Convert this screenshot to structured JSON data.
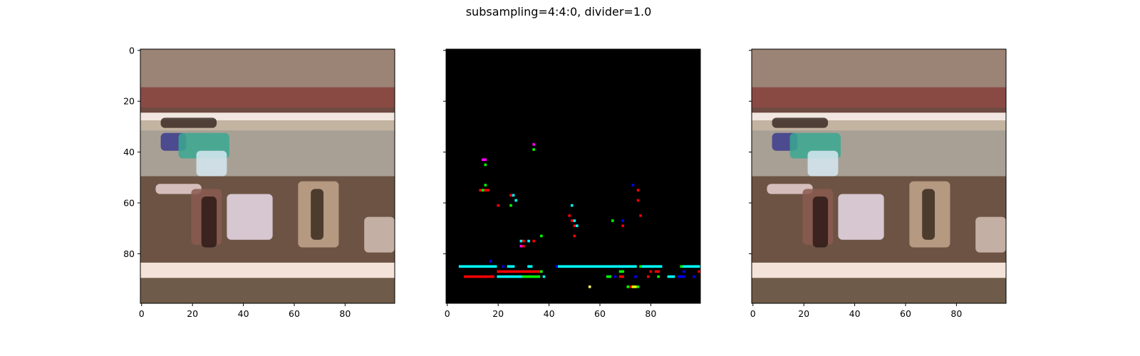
{
  "figure": {
    "title": "subsampling=4:4:0, divider=1.0"
  },
  "chart_data": [
    {
      "type": "heatmap",
      "panel": "left",
      "content": "image",
      "xlim": [
        0,
        100
      ],
      "ylim": [
        100,
        0
      ],
      "xticks": [
        0,
        20,
        40,
        60,
        80
      ],
      "yticks": [
        0,
        20,
        40,
        60,
        80
      ],
      "show_y_tick_labels": true,
      "image_bands": [
        {
          "y0": 0,
          "y1": 15,
          "color": "#9b8375"
        },
        {
          "y0": 15,
          "y1": 23,
          "color": "#8a4a44"
        },
        {
          "y0": 23,
          "y1": 25,
          "color": "#6e4a42"
        },
        {
          "y0": 25,
          "y1": 28,
          "color": "#f2e6e0"
        },
        {
          "y0": 28,
          "y1": 32,
          "color": "#c3b3a1"
        },
        {
          "y0": 32,
          "y1": 50,
          "color": "#a8a095"
        },
        {
          "y0": 50,
          "y1": 84,
          "color": "#6d5343"
        },
        {
          "y0": 84,
          "y1": 90,
          "color": "#f3e3d8"
        },
        {
          "y0": 90,
          "y1": 100,
          "color": "#6f5b49"
        }
      ],
      "image_blobs": [
        {
          "x": 8,
          "y": 27,
          "w": 22,
          "h": 4,
          "color": "#3b2a25"
        },
        {
          "x": 8,
          "y": 33,
          "w": 10,
          "h": 7,
          "color": "#3c3c8e"
        },
        {
          "x": 15,
          "y": 33,
          "w": 20,
          "h": 10,
          "color": "#3aa892"
        },
        {
          "x": 22,
          "y": 40,
          "w": 12,
          "h": 10,
          "color": "#d6e8f2"
        },
        {
          "x": 6,
          "y": 53,
          "w": 18,
          "h": 4,
          "color": "#e6d0d0"
        },
        {
          "x": 20,
          "y": 55,
          "w": 12,
          "h": 22,
          "color": "#8a5a50"
        },
        {
          "x": 24,
          "y": 58,
          "w": 6,
          "h": 20,
          "color": "#2e1b17"
        },
        {
          "x": 34,
          "y": 57,
          "w": 18,
          "h": 18,
          "color": "#e9dcea"
        },
        {
          "x": 62,
          "y": 52,
          "w": 16,
          "h": 26,
          "color": "#c2a68c"
        },
        {
          "x": 67,
          "y": 55,
          "w": 5,
          "h": 20,
          "color": "#3a2b20"
        },
        {
          "x": 88,
          "y": 66,
          "w": 12,
          "h": 14,
          "color": "#d3bfb6"
        }
      ]
    },
    {
      "type": "heatmap",
      "panel": "middle",
      "content": "difference image",
      "background": "#000000",
      "xlim": [
        0,
        100
      ],
      "ylim": [
        100,
        0
      ],
      "xticks": [
        0,
        20,
        40,
        60,
        80
      ],
      "yticks": [
        0,
        20,
        40,
        60,
        80
      ],
      "show_y_tick_labels": false,
      "points": [
        {
          "x": 34,
          "y": 37,
          "w": 1,
          "h": 1,
          "color": "#ff00ff"
        },
        {
          "x": 34,
          "y": 39,
          "w": 1,
          "h": 1,
          "color": "#00ff00"
        },
        {
          "x": 14,
          "y": 43,
          "w": 2,
          "h": 1,
          "color": "#ff00ff"
        },
        {
          "x": 15,
          "y": 45,
          "w": 1,
          "h": 1,
          "color": "#00ff00"
        },
        {
          "x": 15,
          "y": 53,
          "w": 1,
          "h": 1,
          "color": "#00ff00"
        },
        {
          "x": 13,
          "y": 55,
          "w": 1,
          "h": 1,
          "color": "#ff0000"
        },
        {
          "x": 14,
          "y": 55,
          "w": 1,
          "h": 1,
          "color": "#00ff00"
        },
        {
          "x": 15,
          "y": 55,
          "w": 2,
          "h": 1,
          "color": "#ff0000"
        },
        {
          "x": 25,
          "y": 57,
          "w": 1,
          "h": 1,
          "color": "#ff0000"
        },
        {
          "x": 26,
          "y": 57,
          "w": 1,
          "h": 1,
          "color": "#00ffff"
        },
        {
          "x": 27,
          "y": 59,
          "w": 1,
          "h": 1,
          "color": "#00ffff"
        },
        {
          "x": 20,
          "y": 61,
          "w": 1,
          "h": 1,
          "color": "#ff0000"
        },
        {
          "x": 25,
          "y": 61,
          "w": 1,
          "h": 1,
          "color": "#00ff00"
        },
        {
          "x": 49,
          "y": 61,
          "w": 1,
          "h": 1,
          "color": "#00ffff"
        },
        {
          "x": 48,
          "y": 65,
          "w": 1,
          "h": 1,
          "color": "#ff0000"
        },
        {
          "x": 49,
          "y": 67,
          "w": 1,
          "h": 1,
          "color": "#ff0000"
        },
        {
          "x": 50,
          "y": 67,
          "w": 1,
          "h": 1,
          "color": "#00ffff"
        },
        {
          "x": 50,
          "y": 69,
          "w": 1,
          "h": 1,
          "color": "#ff0000"
        },
        {
          "x": 51,
          "y": 69,
          "w": 1,
          "h": 1,
          "color": "#00ffff"
        },
        {
          "x": 65,
          "y": 67,
          "w": 1,
          "h": 1,
          "color": "#00ff00"
        },
        {
          "x": 69,
          "y": 67,
          "w": 1,
          "h": 1,
          "color": "#0000ff"
        },
        {
          "x": 69,
          "y": 69,
          "w": 1,
          "h": 1,
          "color": "#ff0000"
        },
        {
          "x": 73,
          "y": 53,
          "w": 1,
          "h": 1,
          "color": "#0000ff"
        },
        {
          "x": 75,
          "y": 55,
          "w": 1,
          "h": 1,
          "color": "#ff0000"
        },
        {
          "x": 75,
          "y": 59,
          "w": 1,
          "h": 1,
          "color": "#ff0000"
        },
        {
          "x": 76,
          "y": 65,
          "w": 1,
          "h": 1,
          "color": "#ff0000"
        },
        {
          "x": 50,
          "y": 73,
          "w": 1,
          "h": 1,
          "color": "#ff0000"
        },
        {
          "x": 37,
          "y": 73,
          "w": 1,
          "h": 1,
          "color": "#00ff00"
        },
        {
          "x": 29,
          "y": 75,
          "w": 1,
          "h": 1,
          "color": "#00ffff"
        },
        {
          "x": 30,
          "y": 75,
          "w": 1,
          "h": 1,
          "color": "#ff0000"
        },
        {
          "x": 32,
          "y": 75,
          "w": 1,
          "h": 1,
          "color": "#00ffff"
        },
        {
          "x": 34,
          "y": 75,
          "w": 1,
          "h": 1,
          "color": "#ff0000"
        },
        {
          "x": 29,
          "y": 77,
          "w": 1,
          "h": 1,
          "color": "#ff00ff"
        },
        {
          "x": 30,
          "y": 77,
          "w": 1,
          "h": 1,
          "color": "#ff0000"
        },
        {
          "x": 17,
          "y": 83,
          "w": 1,
          "h": 1,
          "color": "#0000ff"
        },
        {
          "x": 5,
          "y": 85,
          "w": 15,
          "h": 1,
          "color": "#00ffff"
        },
        {
          "x": 22,
          "y": 85,
          "w": 1,
          "h": 1,
          "color": "#0000ff"
        },
        {
          "x": 24,
          "y": 85,
          "w": 3,
          "h": 1,
          "color": "#00ffff"
        },
        {
          "x": 32,
          "y": 85,
          "w": 2,
          "h": 1,
          "color": "#00ffff"
        },
        {
          "x": 43,
          "y": 85,
          "w": 1,
          "h": 1,
          "color": "#0000ff"
        },
        {
          "x": 44,
          "y": 85,
          "w": 31,
          "h": 1,
          "color": "#00ffff"
        },
        {
          "x": 77,
          "y": 85,
          "w": 8,
          "h": 1,
          "color": "#00ffff"
        },
        {
          "x": 76,
          "y": 85,
          "w": 1,
          "h": 1,
          "color": "#00ff00"
        },
        {
          "x": 92,
          "y": 85,
          "w": 1,
          "h": 1,
          "color": "#00ff00"
        },
        {
          "x": 93,
          "y": 85,
          "w": 7,
          "h": 1,
          "color": "#00ffff"
        },
        {
          "x": 20,
          "y": 87,
          "w": 18,
          "h": 1,
          "color": "#ff0000"
        },
        {
          "x": 37,
          "y": 87,
          "w": 1,
          "h": 1,
          "color": "#00ff00"
        },
        {
          "x": 68,
          "y": 87,
          "w": 2,
          "h": 1,
          "color": "#00ff00"
        },
        {
          "x": 80,
          "y": 87,
          "w": 1,
          "h": 1,
          "color": "#ff0000"
        },
        {
          "x": 82,
          "y": 87,
          "w": 2,
          "h": 1,
          "color": "#ff0000"
        },
        {
          "x": 93,
          "y": 87,
          "w": 1,
          "h": 1,
          "color": "#0000ff"
        },
        {
          "x": 99,
          "y": 87,
          "w": 1,
          "h": 1,
          "color": "#ff0000"
        },
        {
          "x": 7,
          "y": 89,
          "w": 12,
          "h": 1,
          "color": "#ff0000"
        },
        {
          "x": 20,
          "y": 89,
          "w": 10,
          "h": 1,
          "color": "#00ffff"
        },
        {
          "x": 30,
          "y": 89,
          "w": 7,
          "h": 1,
          "color": "#00ff00"
        },
        {
          "x": 38,
          "y": 89,
          "w": 1,
          "h": 1,
          "color": "#00ffff"
        },
        {
          "x": 63,
          "y": 89,
          "w": 2,
          "h": 1,
          "color": "#00ff00"
        },
        {
          "x": 66,
          "y": 89,
          "w": 1,
          "h": 1,
          "color": "#0000ff"
        },
        {
          "x": 68,
          "y": 89,
          "w": 2,
          "h": 1,
          "color": "#ff0000"
        },
        {
          "x": 74,
          "y": 89,
          "w": 1,
          "h": 1,
          "color": "#0000ff"
        },
        {
          "x": 79,
          "y": 89,
          "w": 1,
          "h": 1,
          "color": "#ff0000"
        },
        {
          "x": 83,
          "y": 89,
          "w": 1,
          "h": 1,
          "color": "#00ff00"
        },
        {
          "x": 87,
          "y": 89,
          "w": 3,
          "h": 1,
          "color": "#00ffff"
        },
        {
          "x": 91,
          "y": 89,
          "w": 3,
          "h": 1,
          "color": "#0000ff"
        },
        {
          "x": 97,
          "y": 89,
          "w": 1,
          "h": 1,
          "color": "#0000ff"
        },
        {
          "x": 56,
          "y": 93,
          "w": 1,
          "h": 1,
          "color": "#ffff66"
        },
        {
          "x": 71,
          "y": 93,
          "w": 1,
          "h": 1,
          "color": "#00ff00"
        },
        {
          "x": 72,
          "y": 93,
          "w": 1,
          "h": 1,
          "color": "#ff0000"
        },
        {
          "x": 73,
          "y": 93,
          "w": 2,
          "h": 1,
          "color": "#ffff00"
        },
        {
          "x": 75,
          "y": 93,
          "w": 1,
          "h": 1,
          "color": "#00ff00"
        }
      ]
    },
    {
      "type": "heatmap",
      "panel": "right",
      "content": "image",
      "same_as_panel": "left",
      "xlim": [
        0,
        100
      ],
      "ylim": [
        100,
        0
      ],
      "xticks": [
        0,
        20,
        40,
        60,
        80
      ],
      "yticks": [
        0,
        20,
        40,
        60,
        80
      ],
      "show_y_tick_labels": false
    }
  ]
}
